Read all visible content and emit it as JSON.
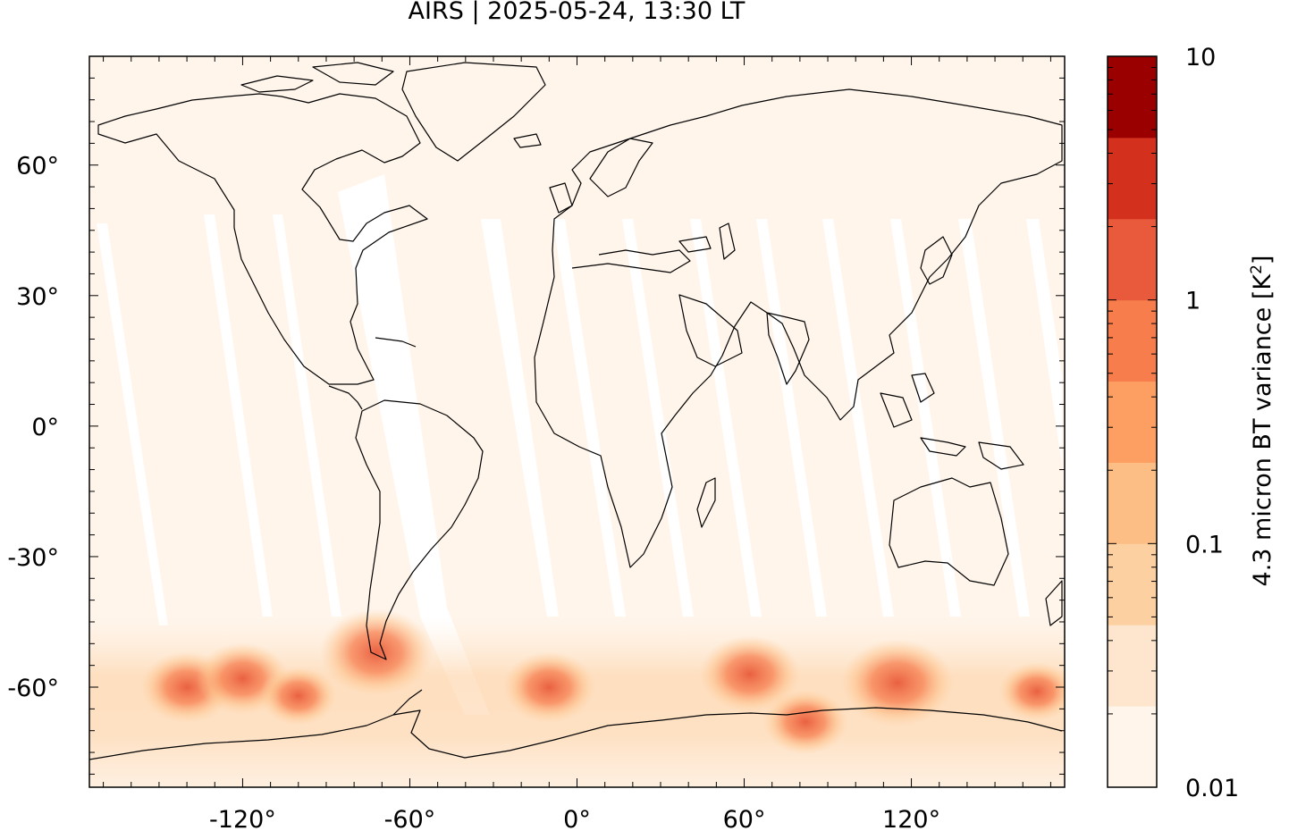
{
  "title": "AIRS | 2025-05-24, 13:30 LT",
  "map": {
    "type": "heatmap",
    "projection": "equirectangular",
    "lon_range": [
      -175,
      175
    ],
    "lat_range": [
      -83,
      85
    ],
    "x_ticks": [
      {
        "value": -120,
        "label": "-120°"
      },
      {
        "value": -60,
        "label": "-60°"
      },
      {
        "value": 0,
        "label": "0°"
      },
      {
        "value": 60,
        "label": "60°"
      },
      {
        "value": 120,
        "label": "120°"
      }
    ],
    "y_ticks": [
      {
        "value": 60,
        "label": "60°"
      },
      {
        "value": 30,
        "label": "30°"
      },
      {
        "value": 0,
        "label": "0°"
      },
      {
        "value": -30,
        "label": "-30°"
      },
      {
        "value": -60,
        "label": "-60°"
      }
    ],
    "background_color": "#fff5eb",
    "coastline_color": "#000000"
  },
  "chart_data": {
    "type": "heatmap",
    "title": "AIRS | 2025-05-24, 13:30 LT",
    "quantity": "4.3 micron BT variance",
    "scale": "log",
    "range": [
      0.01,
      10
    ],
    "hotspots": [
      {
        "lon": -140,
        "lat": -60,
        "level": 1.0
      },
      {
        "lon": -120,
        "lat": -58,
        "level": 1.0
      },
      {
        "lon": -100,
        "lat": -62,
        "level": 0.6
      },
      {
        "lon": -72,
        "lat": -52,
        "level": 1.5
      },
      {
        "lon": -10,
        "lat": -60,
        "level": 1.0
      },
      {
        "lon": 62,
        "lat": -57,
        "level": 1.2
      },
      {
        "lon": 115,
        "lat": -59,
        "level": 1.5
      },
      {
        "lon": 82,
        "lat": -68,
        "level": 0.8
      },
      {
        "lon": 165,
        "lat": -61,
        "level": 0.6
      }
    ]
  },
  "colorbar": {
    "label": "4.3 micron BT variance [K",
    "label_sup": "2",
    "label_end": "]",
    "tick_labels": [
      {
        "value": 10,
        "label": "10"
      },
      {
        "value": 1,
        "label": "1"
      },
      {
        "value": 0.1,
        "label": "0.1"
      },
      {
        "value": 0.01,
        "label": "0.01"
      }
    ],
    "colors": [
      "#fff5eb",
      "#fee6ce",
      "#fdd0a2",
      "#fdbe85",
      "#fd9e62",
      "#f77d4d",
      "#e85a3b",
      "#d3301e",
      "#9b0000"
    ]
  }
}
